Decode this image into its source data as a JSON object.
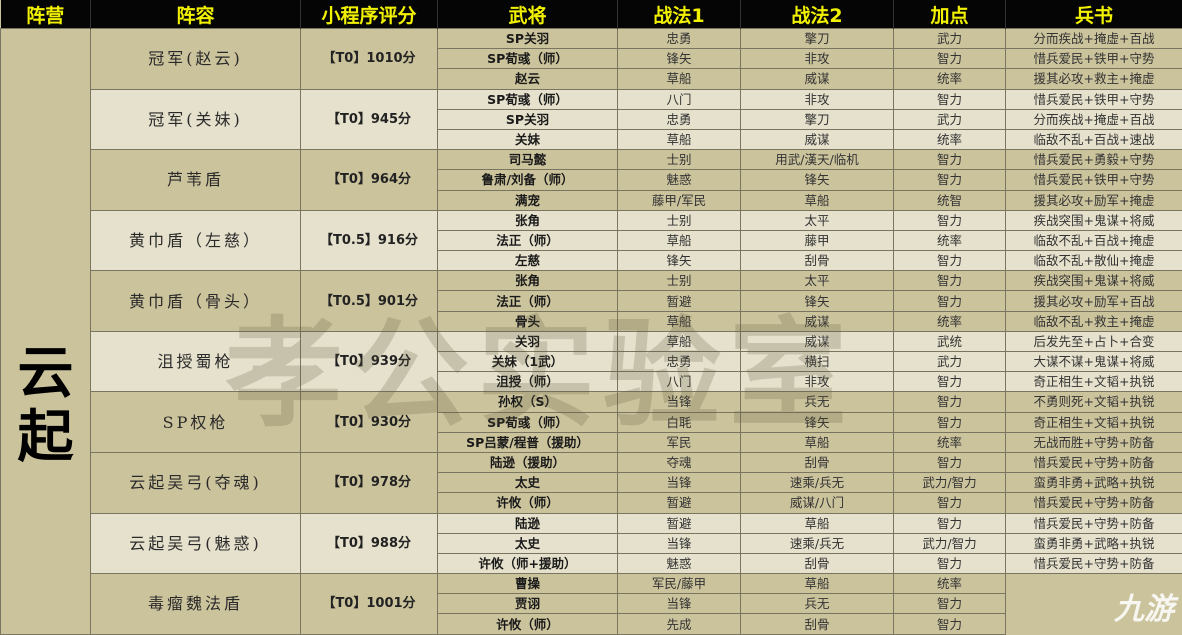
{
  "headers": [
    "阵营",
    "阵容",
    "小程序评分",
    "武将",
    "战法1",
    "战法2",
    "加点",
    "兵书"
  ],
  "faction": "云起",
  "watermark": "孝公实验室",
  "logo": "九游",
  "colors": {
    "header_bg": "#050505",
    "header_text": "#f2f200",
    "row_dark": "#cbc39c",
    "row_light": "#e5e1cc"
  },
  "groups": [
    {
      "name": "冠军(赵云)",
      "score": "【T0】1010分",
      "shade": "dark",
      "rows": [
        [
          "SP关羽",
          "忠勇",
          "擎刀",
          "武力",
          "分而疾战+掩虚+百战"
        ],
        [
          "SP荀彧（师）",
          "锋矢",
          "非攻",
          "智力",
          "惜兵爱民+铁甲+守势"
        ],
        [
          "赵云",
          "草船",
          "威谋",
          "统率",
          "援其必攻+救主+掩虚"
        ]
      ]
    },
    {
      "name": "冠军(关妹)",
      "score": "【T0】945分",
      "shade": "light",
      "rows": [
        [
          "SP荀彧（师）",
          "八门",
          "非攻",
          "智力",
          "惜兵爱民+铁甲+守势"
        ],
        [
          "SP关羽",
          "忠勇",
          "擎刀",
          "武力",
          "分而疾战+掩虚+百战"
        ],
        [
          "关妹",
          "草船",
          "威谋",
          "统率",
          "临敌不乱+百战+速战"
        ]
      ]
    },
    {
      "name": "芦苇盾",
      "score": "【T0】964分",
      "shade": "dark",
      "rows": [
        [
          "司马懿",
          "士别",
          "用武/漢天/临机",
          "智力",
          "惜兵爱民+勇毅+守势"
        ],
        [
          "鲁肃/刘备（师）",
          "魅惑",
          "锋矢",
          "智力",
          "惜兵爱民+铁甲+守势"
        ],
        [
          "满宠",
          "藤甲/军民",
          "草船",
          "统智",
          "援其必攻+励军+掩虚"
        ]
      ]
    },
    {
      "name": "黄巾盾（左慈）",
      "score": "【T0.5】916分",
      "shade": "light",
      "rows": [
        [
          "张角",
          "士别",
          "太平",
          "智力",
          "疾战突围+鬼谋+将威"
        ],
        [
          "法正（师）",
          "草船",
          "藤甲",
          "统率",
          "临敌不乱+百战+掩虚"
        ],
        [
          "左慈",
          "锋矢",
          "刮骨",
          "智力",
          "临敌不乱+散仙+掩虚"
        ]
      ]
    },
    {
      "name": "黄巾盾（骨头）",
      "score": "【T0.5】901分",
      "shade": "dark",
      "rows": [
        [
          "张角",
          "士别",
          "太平",
          "智力",
          "疾战突围+鬼谋+将威"
        ],
        [
          "法正（师）",
          "暂避",
          "锋矢",
          "智力",
          "援其必攻+励军+百战"
        ],
        [
          "骨头",
          "草船",
          "威谋",
          "统率",
          "临敌不乱+救主+掩虚"
        ]
      ]
    },
    {
      "name": "沮授蜀枪",
      "score": "【T0】939分",
      "shade": "light",
      "rows": [
        [
          "关羽",
          "草船",
          "威谋",
          "武统",
          "后发先至+占卜+合变"
        ],
        [
          "关妹（1武）",
          "忠勇",
          "横扫",
          "武力",
          "大谋不谋+鬼谋+将威"
        ],
        [
          "沮授（师）",
          "八门",
          "非攻",
          "智力",
          "奇正相生+文韬+执锐"
        ]
      ]
    },
    {
      "name": "SP权枪",
      "score": "【T0】930分",
      "shade": "dark",
      "rows": [
        [
          "孙权（S）",
          "当锋",
          "兵无",
          "智力",
          "不勇则死+文韬+执锐"
        ],
        [
          "SP荀彧（师）",
          "白毦",
          "锋矢",
          "智力",
          "奇正相生+文韬+执锐"
        ],
        [
          "SP吕蒙/程普（援助）",
          "军民",
          "草船",
          "统率",
          "无战而胜+守势+防备"
        ]
      ]
    },
    {
      "name": "云起吴弓(夺魂)",
      "score": "【T0】978分",
      "shade": "dark",
      "rows": [
        [
          "陆逊（援助）",
          "夺魂",
          "刮骨",
          "智力",
          "惜兵爱民+守势+防备"
        ],
        [
          "太史",
          "当锋",
          "速乘/兵无",
          "武力/智力",
          "蛮勇非勇+武略+执锐"
        ],
        [
          "许攸（师）",
          "暂避",
          "威谋/八门",
          "智力",
          "惜兵爱民+守势+防备"
        ]
      ]
    },
    {
      "name": "云起吴弓(魅惑)",
      "score": "【T0】988分",
      "shade": "light",
      "rows": [
        [
          "陆逊",
          "暂避",
          "草船",
          "智力",
          "惜兵爱民+守势+防备"
        ],
        [
          "太史",
          "当锋",
          "速乘/兵无",
          "武力/智力",
          "蛮勇非勇+武略+执锐"
        ],
        [
          "许攸（师+援助）",
          "魅惑",
          "刮骨",
          "智力",
          "惜兵爱民+守势+防备"
        ]
      ]
    },
    {
      "name": "毒瘤魏法盾",
      "score": "【T0】1001分",
      "shade": "dark",
      "rows": [
        [
          "曹操",
          "军民/藤甲",
          "草船",
          "统率",
          ""
        ],
        [
          "贾诩",
          "当锋",
          "兵无",
          "智力",
          ""
        ],
        [
          "许攸（师）",
          "先成",
          "刮骨",
          "智力",
          ""
        ]
      ]
    }
  ]
}
